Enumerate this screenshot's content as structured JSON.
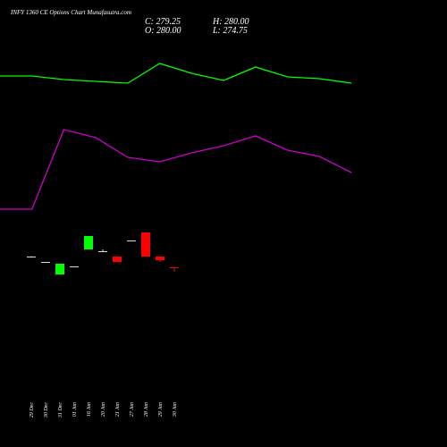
{
  "title": "INFY 1360 CE Options Chart Munafasutra.com",
  "ohlc": {
    "close": "C: 279.25",
    "high": "H: 280.00",
    "open": "O: 280.00",
    "low": "L: 274.75"
  },
  "chart_data": [
    {
      "type": "line",
      "categories": [
        null,
        null,
        null,
        null,
        null,
        null,
        null,
        null,
        null,
        null,
        null,
        null
      ],
      "ylim": [
        0,
        500
      ],
      "series": [
        {
          "color": "#00ff00",
          "values": [
            415,
            415,
            411,
            409,
            407,
            429,
            418,
            410,
            425,
            414,
            412,
            407
          ]
        },
        {
          "color": "#cc00cc",
          "values": [
            266,
            266,
            355,
            346,
            324,
            319,
            329,
            337,
            348,
            332,
            325,
            307
          ]
        }
      ]
    },
    {
      "type": "candlestick",
      "categories": [
        "29 Dec",
        "30 Dec",
        "31 Dec",
        "01 Jan",
        "16 Jan",
        "20 Jan",
        "21 Jan",
        "27 Jan",
        "28 Jan",
        "29 Jan",
        "30 Jan"
      ],
      "ylim": [
        79,
        579
      ],
      "open": [
        292,
        286,
        272,
        281,
        300,
        298,
        292,
        310,
        319,
        292,
        280
      ],
      "high": [
        292.5,
        286,
        284,
        281,
        315,
        300,
        292,
        310,
        319,
        292,
        280
      ],
      "low": [
        291.5,
        285.5,
        272,
        281,
        300,
        297,
        286,
        310,
        292,
        286,
        274.75
      ],
      "close": [
        292,
        286,
        284,
        281,
        315,
        298,
        286,
        310,
        292,
        288,
        279.25
      ],
      "colors": {
        "up": "#00ff00",
        "down": "#ff0000",
        "flat": "#dddddd"
      }
    }
  ]
}
